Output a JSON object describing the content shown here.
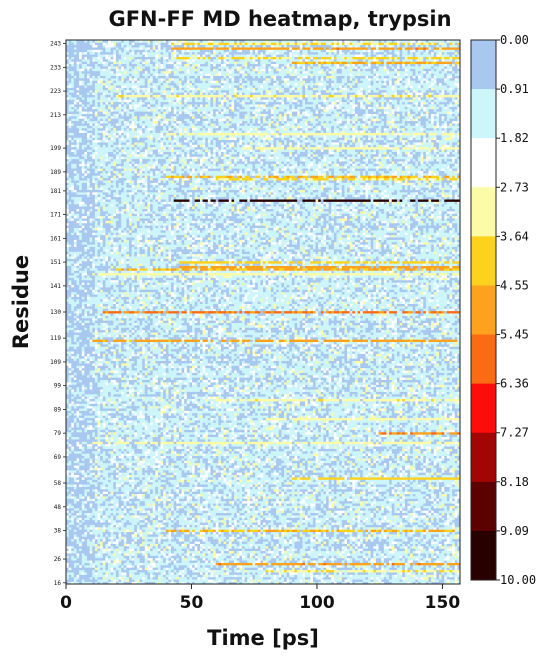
{
  "chart_data": {
    "type": "heatmap",
    "title": "GFN-FF MD heatmap, trypsin",
    "xlabel": "Time [ps]",
    "ylabel": "Residue",
    "xlim": [
      0,
      157
    ],
    "ylim": [
      16,
      245
    ],
    "x_ticks": [
      "0",
      "50",
      "100",
      "150"
    ],
    "x_tick_values": [
      0,
      50,
      100,
      150
    ],
    "y_ticks": [
      "16",
      "26",
      "38",
      "48",
      "58",
      "69",
      "79",
      "89",
      "99",
      "109",
      "119",
      "130",
      "141",
      "151",
      "161",
      "171",
      "181",
      "189",
      "199",
      "213",
      "223",
      "233",
      "243"
    ],
    "colorbar": {
      "ticks": [
        "0.00",
        "0.91",
        "1.82",
        "2.73",
        "3.64",
        "4.55",
        "5.45",
        "6.36",
        "7.27",
        "8.18",
        "9.09",
        "10.00"
      ],
      "colors": [
        "#a9c8ef",
        "#ccf6fa",
        "#ffffff",
        "#fdfca6",
        "#fcd21c",
        "#fca21d",
        "#fb6b14",
        "#fc0d09",
        "#a30505",
        "#5c0000",
        "#290000"
      ],
      "range": [
        0,
        10
      ]
    },
    "bands": [
      {
        "residue": 243,
        "start": 42,
        "value": 3.6
      },
      {
        "residue": 241,
        "start": 42,
        "value": 5.2
      },
      {
        "residue": 237,
        "start": 42,
        "value": 3.8
      },
      {
        "residue": 235,
        "start": 90,
        "value": 4.6
      },
      {
        "residue": 221,
        "start": 20,
        "value": 3.4
      },
      {
        "residue": 205,
        "start": 40,
        "value": 3.2
      },
      {
        "residue": 199,
        "start": 70,
        "value": 3.0
      },
      {
        "residue": 187,
        "start": 40,
        "value": 4.5
      },
      {
        "residue": 186,
        "start": 60,
        "value": 3.7
      },
      {
        "residue": 177,
        "start": 43,
        "value": 10.0
      },
      {
        "residue": 151,
        "start": 45,
        "value": 3.9
      },
      {
        "residue": 149,
        "start": 45,
        "value": 5.0
      },
      {
        "residue": 148,
        "start": 20,
        "value": 4.6
      },
      {
        "residue": 146,
        "start": 10,
        "value": 3.3
      },
      {
        "residue": 130,
        "start": 15,
        "value": 5.6
      },
      {
        "residue": 118,
        "start": 10,
        "value": 4.8
      },
      {
        "residue": 93,
        "start": 60,
        "value": 3.4
      },
      {
        "residue": 85,
        "start": 80,
        "value": 3.2
      },
      {
        "residue": 79,
        "start": 125,
        "value": 5.4
      },
      {
        "residue": 75,
        "start": 10,
        "value": 3.1
      },
      {
        "residue": 60,
        "start": 90,
        "value": 4.0
      },
      {
        "residue": 38,
        "start": 40,
        "value": 4.6
      },
      {
        "residue": 24,
        "start": 60,
        "value": 5.2
      },
      {
        "residue": 21,
        "start": 80,
        "value": 3.5
      }
    ]
  }
}
